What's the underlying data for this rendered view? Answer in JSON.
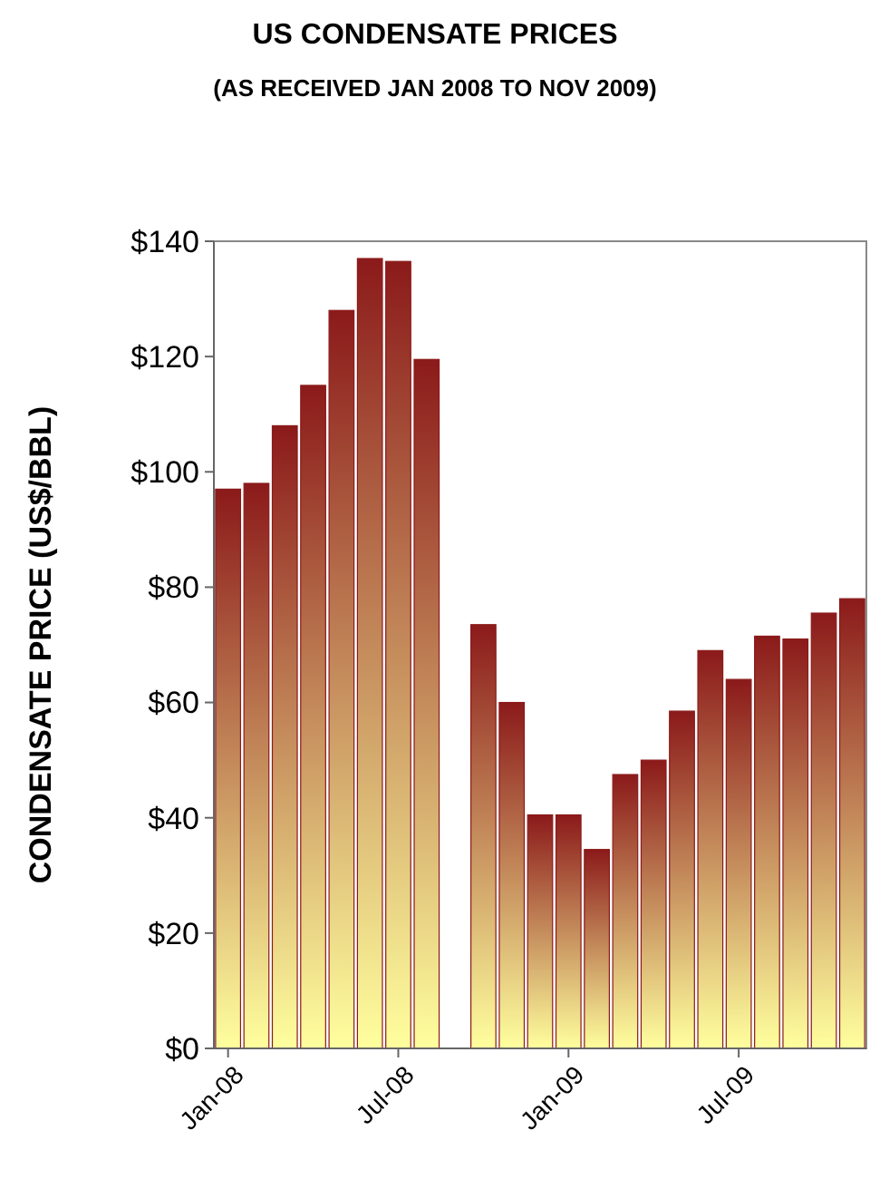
{
  "chart_data": {
    "type": "bar",
    "title": "US CONDENSATE PRICES",
    "subtitle": "(AS RECEIVED JAN 2008 TO NOV 2009)",
    "ylabel": "CONDENSATE PRICE (US$/BBL)",
    "categories": [
      "Jan-08",
      null,
      null,
      null,
      null,
      null,
      "Jul-08",
      null,
      null,
      null,
      null,
      null,
      "Jan-09",
      null,
      null,
      null,
      null,
      null,
      "Jul-09",
      null,
      null,
      null,
      null
    ],
    "values": [
      97,
      98,
      108,
      115,
      128,
      137,
      136.5,
      119.5,
      null,
      73.5,
      60,
      40.5,
      40.5,
      34.5,
      47.5,
      50,
      58.5,
      69,
      64,
      71.5,
      71,
      75.5,
      78
    ],
    "color": "#8b1a1a",
    "ylim": [
      0,
      140
    ],
    "yticks": [
      {
        "value": 0,
        "label": "$0"
      },
      {
        "value": 20,
        "label": "$20"
      },
      {
        "value": 40,
        "label": "$40"
      },
      {
        "value": 60,
        "label": "$60"
      },
      {
        "value": 80,
        "label": "$80"
      },
      {
        "value": 100,
        "label": "$100"
      },
      {
        "value": 120,
        "label": "$120"
      },
      {
        "value": 140,
        "label": "$140"
      }
    ],
    "grid": false
  }
}
